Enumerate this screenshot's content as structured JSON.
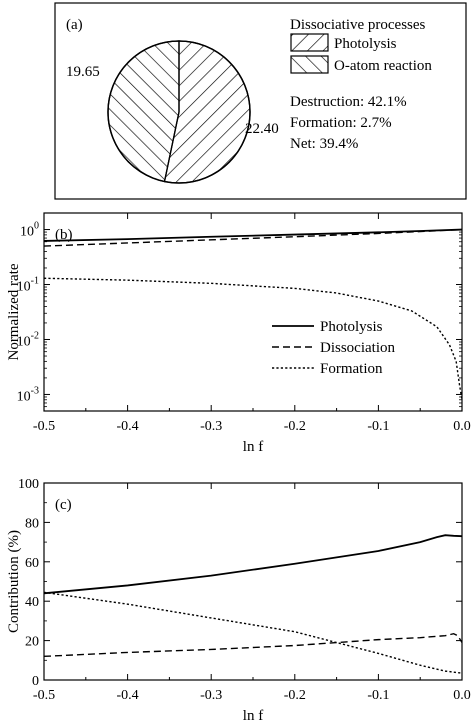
{
  "chart_data": [
    {
      "panel": "(a)",
      "type": "pie",
      "legend_title": "Dissociative processes",
      "categories": [
        "Photolysis",
        "O-atom reaction"
      ],
      "values": [
        22.4,
        19.65
      ],
      "slice_labels": [
        "22.40",
        "19.65"
      ],
      "stats": [
        "Destruction: 42.1%",
        "Formation: 2.7%",
        "Net: 39.4%"
      ],
      "legend_placement": "right"
    },
    {
      "panel": "(b)",
      "type": "line",
      "xlabel": "ln f",
      "ylabel": "Normalized rate",
      "yscale": "log",
      "xlim": [
        -0.5,
        0.0
      ],
      "ylim": [
        0.0005,
        2
      ],
      "xticks": [
        -0.5,
        -0.4,
        -0.3,
        -0.2,
        -0.1,
        0.0
      ],
      "xtick_labels": [
        "-0.5",
        "-0.4",
        "-0.3",
        "-0.2",
        "-0.1",
        "0.0"
      ],
      "yticks": [
        1,
        0.1,
        0.01,
        0.001
      ],
      "ytick_bases": [
        "10",
        "10",
        "10",
        "10"
      ],
      "ytick_exps": [
        "0",
        "-1",
        "-2",
        "-3"
      ],
      "legend_placement": "lower-right",
      "series": [
        {
          "name": "Photolysis",
          "style": "solid",
          "x": [
            -0.5,
            -0.4,
            -0.3,
            -0.2,
            -0.1,
            -0.05,
            0.0
          ],
          "y": [
            0.62,
            0.67,
            0.74,
            0.81,
            0.89,
            0.94,
            1.0
          ]
        },
        {
          "name": "Dissociation",
          "style": "dashed",
          "x": [
            -0.5,
            -0.4,
            -0.3,
            -0.2,
            -0.1,
            -0.05,
            0.0
          ],
          "y": [
            0.5,
            0.57,
            0.65,
            0.74,
            0.85,
            0.92,
            1.0
          ]
        },
        {
          "name": "Formation",
          "style": "dotted",
          "x": [
            -0.5,
            -0.4,
            -0.3,
            -0.2,
            -0.15,
            -0.1,
            -0.06,
            -0.03,
            -0.015,
            -0.007,
            -0.003,
            0.0
          ],
          "y": [
            0.13,
            0.12,
            0.105,
            0.085,
            0.07,
            0.05,
            0.033,
            0.017,
            0.008,
            0.004,
            0.0015,
            0.0008
          ]
        }
      ]
    },
    {
      "panel": "(c)",
      "type": "line",
      "xlabel": "ln f",
      "ylabel": "Contribution (%)",
      "xlim": [
        -0.5,
        0.0
      ],
      "ylim": [
        0,
        100
      ],
      "xticks": [
        -0.5,
        -0.4,
        -0.3,
        -0.2,
        -0.1,
        0.0
      ],
      "xtick_labels": [
        "-0.5",
        "-0.4",
        "-0.3",
        "-0.2",
        "-0.1",
        "0.0"
      ],
      "yticks": [
        0,
        20,
        40,
        60,
        80,
        100
      ],
      "ytick_labels": [
        "0",
        "20",
        "40",
        "60",
        "80",
        "100"
      ],
      "series": [
        {
          "style": "solid",
          "x": [
            -0.5,
            -0.4,
            -0.3,
            -0.2,
            -0.1,
            -0.05,
            -0.03,
            -0.02,
            -0.01,
            0.0
          ],
          "y": [
            44,
            48,
            53,
            59,
            65.5,
            70,
            72.5,
            73.5,
            73.2,
            73
          ]
        },
        {
          "style": "dashed",
          "x": [
            -0.5,
            -0.4,
            -0.3,
            -0.2,
            -0.1,
            -0.05,
            -0.02,
            -0.01,
            -0.005,
            0.0
          ],
          "y": [
            12,
            14,
            15.5,
            17.5,
            20.5,
            21.5,
            22.5,
            23.5,
            22.5,
            19
          ]
        },
        {
          "style": "dotted",
          "x": [
            -0.5,
            -0.4,
            -0.3,
            -0.2,
            -0.1,
            -0.05,
            -0.02,
            0.0
          ],
          "y": [
            44.5,
            38.5,
            31.5,
            24.5,
            13.5,
            7.5,
            4.5,
            3.5
          ]
        }
      ]
    }
  ]
}
